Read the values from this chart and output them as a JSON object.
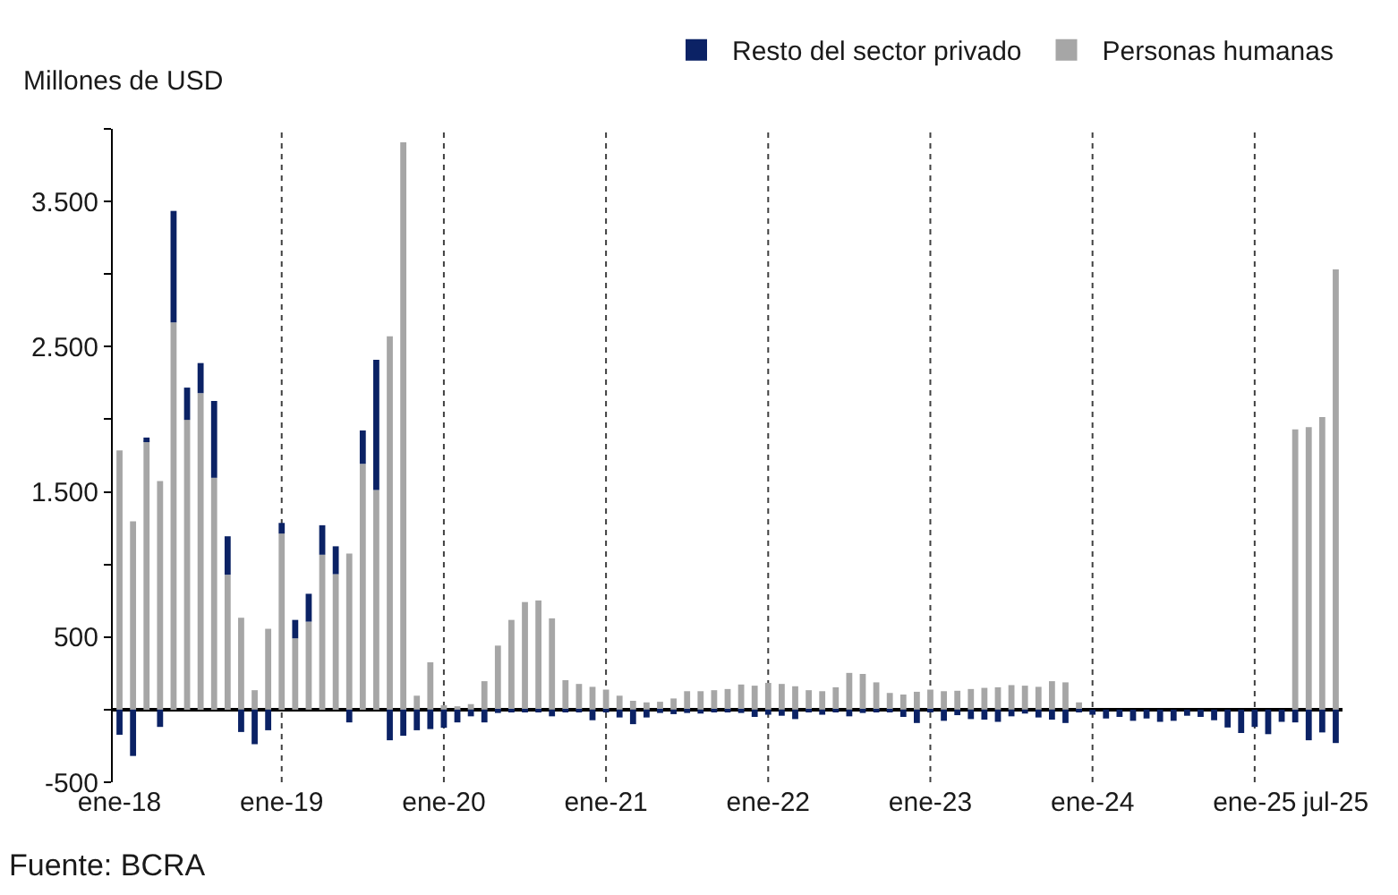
{
  "chart_data": {
    "type": "bar",
    "stacked": true,
    "ylabel": "Millones de USD",
    "categories": [
      "ene-18",
      null,
      null,
      null,
      null,
      null,
      null,
      null,
      null,
      null,
      null,
      null,
      "ene-19",
      null,
      null,
      null,
      null,
      null,
      null,
      null,
      null,
      null,
      null,
      null,
      "ene-20",
      null,
      null,
      null,
      null,
      null,
      null,
      null,
      null,
      null,
      null,
      null,
      "ene-21",
      null,
      null,
      null,
      null,
      null,
      null,
      null,
      null,
      null,
      null,
      null,
      "ene-22",
      null,
      null,
      null,
      null,
      null,
      null,
      null,
      null,
      null,
      null,
      null,
      "ene-23",
      null,
      null,
      null,
      null,
      null,
      null,
      null,
      null,
      null,
      null,
      null,
      "ene-24",
      null,
      null,
      null,
      null,
      null,
      null,
      null,
      null,
      null,
      null,
      null,
      "ene-25",
      null,
      null,
      null,
      null,
      null,
      "jul-25"
    ],
    "series": [
      {
        "name": "Personas humanas",
        "color": "#a6a6a6",
        "values": [
          1785,
          1297,
          1854,
          1574,
          2667,
          1996,
          2180,
          1597,
          929,
          633,
          134,
          557,
          1213,
          491,
          606,
          1067,
          933,
          1075,
          1693,
          1512,
          2571,
          3907,
          96,
          326,
          30,
          23,
          38,
          196,
          441,
          618,
          741,
          752,
          629,
          203,
          177,
          157,
          138,
          96,
          61,
          50,
          54,
          77,
          127,
          127,
          134,
          142,
          173,
          165,
          184,
          177,
          161,
          134,
          127,
          154,
          253,
          246,
          188,
          115,
          104,
          123,
          138,
          127,
          130,
          142,
          150,
          154,
          169,
          165,
          157,
          196,
          188,
          50,
          0,
          0,
          0,
          0,
          0,
          0,
          0,
          0,
          0,
          0,
          0,
          0,
          0,
          0,
          0,
          1930,
          1946,
          2015,
          3032
        ]
      },
      {
        "name": "Resto del sector privado",
        "color": "#0b2265",
        "values": [
          -173,
          -319,
          20,
          -119,
          768,
          222,
          207,
          529,
          265,
          -154,
          -238,
          -142,
          73,
          127,
          192,
          203,
          192,
          -88,
          230,
          898,
          -211,
          -180,
          -142,
          -134,
          -125,
          -88,
          -46,
          -88,
          -23,
          -19,
          -19,
          -19,
          -46,
          -19,
          -19,
          -73,
          -10,
          -54,
          -100,
          -54,
          -23,
          -31,
          -23,
          -27,
          -15,
          -19,
          -23,
          -50,
          -35,
          -42,
          -65,
          -15,
          -35,
          -19,
          -46,
          -23,
          -19,
          -15,
          -50,
          -92,
          -15,
          -77,
          -38,
          -65,
          -69,
          -84,
          -46,
          -27,
          -54,
          -69,
          -92,
          -15,
          -35,
          -61,
          -50,
          -77,
          -61,
          -84,
          -77,
          -42,
          -50,
          -73,
          -123,
          -161,
          -119,
          -169,
          -84,
          -88,
          -211,
          -157,
          -230
        ]
      }
    ],
    "ylim": [
      -500,
      4000
    ],
    "yticks": [
      -500,
      {
        "value": 0,
        "label": null
      },
      500,
      {
        "value": 1000,
        "label": null
      },
      {
        "value": 1500,
        "label": "1.500"
      },
      {
        "value": 2000,
        "label": null
      },
      {
        "value": 2500,
        "label": "2.500"
      },
      {
        "value": 3000,
        "label": null
      },
      {
        "value": 3500,
        "label": "3.500"
      },
      {
        "value": 4000,
        "label": null
      }
    ],
    "ref_lines": [
      {
        "axis": "x",
        "value": "ene-19",
        "color": "#404040",
        "line_style": "dotted"
      },
      {
        "axis": "x",
        "value": "ene-20",
        "color": "#404040",
        "line_style": "dotted"
      },
      {
        "axis": "x",
        "value": "ene-21",
        "color": "#404040",
        "line_style": "dotted"
      },
      {
        "axis": "x",
        "value": "ene-22",
        "color": "#404040",
        "line_style": "dotted"
      },
      {
        "axis": "x",
        "value": "ene-23",
        "color": "#404040",
        "line_style": "dotted"
      },
      {
        "axis": "x",
        "value": "ene-24",
        "color": "#404040",
        "line_style": "dotted"
      },
      {
        "axis": "x",
        "value": "ene-25",
        "color": "#404040",
        "line_style": "dotted"
      }
    ],
    "annotations": [
      "Fuente: BCRA"
    ],
    "legend": "top right",
    "grid": false
  }
}
